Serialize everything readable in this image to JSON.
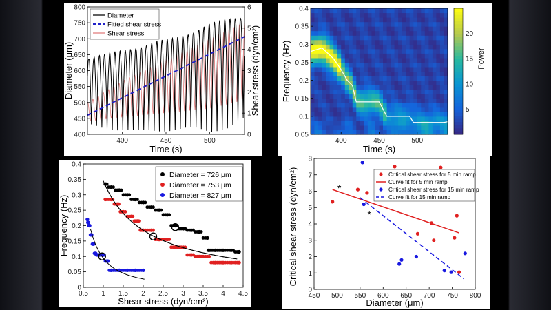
{
  "chart_data": [
    {
      "id": "top-left",
      "type": "line",
      "xlabel": "Time (s)",
      "ylabel": "Diameter (μm)",
      "y2label": "Shear stress (dyn/cm²)",
      "xlim": [
        360,
        540
      ],
      "ylim": [
        400,
        800
      ],
      "y2lim": [
        0,
        6
      ],
      "xticks": [
        400,
        450,
        500
      ],
      "yticks": [
        400,
        450,
        500,
        550,
        600,
        650,
        700,
        750,
        800
      ],
      "y2ticks": [
        0,
        1,
        2,
        3,
        4,
        5,
        6
      ],
      "legend_position": "top-left",
      "series": [
        {
          "name": "Diameter",
          "color": "#000000",
          "style": "solid",
          "axis": "left",
          "description_points": {
            "x": [
              360,
              380,
              400,
              420,
              440,
              460,
              480,
              500,
              520,
              540
            ],
            "upper": [
              640,
              650,
              660,
              675,
              690,
              700,
              720,
              745,
              760,
              770
            ],
            "lower": [
              430,
              420,
              415,
              410,
              412,
              415,
              420,
              410,
              420,
              450
            ]
          }
        },
        {
          "name": "Fitted shear stress",
          "color": "#2020c8",
          "style": "dashed",
          "axis": "right",
          "x": [
            360,
            540
          ],
          "y": [
            0.9,
            4.6
          ]
        },
        {
          "name": "Shear stress",
          "color": "#e07a7a",
          "style": "solid",
          "axis": "right",
          "description_points": {
            "x": [
              360,
              400,
              450,
              500,
              540
            ],
            "upper": [
              1.5,
              2.5,
              3.5,
              4.5,
              5.3
            ],
            "lower": [
              0.6,
              0.8,
              1.0,
              1.2,
              1.6
            ]
          }
        }
      ],
      "oscillation_periods": 30
    },
    {
      "id": "top-right",
      "type": "heatmap",
      "xlabel": "Time (s)",
      "ylabel": "Frequency (Hz)",
      "colorbar_label": "Power",
      "xlim": [
        360,
        540
      ],
      "ylim": [
        0.05,
        0.4
      ],
      "xticks": [
        400,
        450,
        500
      ],
      "yticks": [
        0.05,
        0.1,
        0.15,
        0.2,
        0.25,
        0.3,
        0.35,
        0.4
      ],
      "colorbar_ticks": [
        5,
        10,
        15,
        20
      ],
      "colorbar_range": [
        0,
        25
      ],
      "ridge": {
        "x": [
          360,
          375,
          390,
          400,
          408,
          415,
          420,
          430,
          440,
          450,
          460,
          470,
          480,
          490,
          495,
          505,
          515,
          525,
          535,
          540
        ],
        "y": [
          0.28,
          0.29,
          0.26,
          0.23,
          0.2,
          0.185,
          0.14,
          0.14,
          0.14,
          0.14,
          0.1,
          0.1,
          0.1,
          0.1,
          0.083,
          0.083,
          0.083,
          0.083,
          0.083,
          0.085
        ]
      }
    },
    {
      "id": "bottom-left",
      "type": "scatter",
      "xlabel": "Shear stress (dyn/cm²)",
      "ylabel": "Frequency (Hz)",
      "xlim": [
        0.5,
        4.5
      ],
      "ylim": [
        0,
        0.4
      ],
      "xticks": [
        0.5,
        1,
        1.5,
        2,
        2.5,
        3,
        3.5,
        4,
        4.5
      ],
      "yticks": [
        0,
        0.05,
        0.1,
        0.15,
        0.2,
        0.25,
        0.3,
        0.35,
        0.4
      ],
      "legend_position": "top-right",
      "series": [
        {
          "name": "Diameter = 726 μm",
          "color": "#000000",
          "x": [
            1.05,
            1.2,
            1.4,
            1.6,
            1.8,
            2.0,
            2.2,
            2.4,
            2.6,
            2.8,
            3.0,
            3.2,
            3.4,
            3.6,
            3.65,
            3.8,
            4.0,
            4.2,
            4.4
          ],
          "y": [
            0.335,
            0.325,
            0.315,
            0.3,
            0.285,
            0.275,
            0.26,
            0.25,
            0.235,
            0.2,
            0.19,
            0.185,
            0.18,
            0.16,
            0.12,
            0.12,
            0.12,
            0.12,
            0.115
          ],
          "fit": {
            "a": 0.345,
            "b": 0.9,
            "x0": 1.0,
            "x1": 4.35
          },
          "marker": {
            "x": 2.8,
            "y": 0.195
          }
        },
        {
          "name": "Diameter = 753 μm",
          "color": "#e02020",
          "x": [
            1.05,
            1.2,
            1.35,
            1.5,
            1.7,
            1.85,
            2.0,
            2.2,
            2.4,
            2.6,
            2.8,
            3.0,
            3.2,
            3.4,
            3.6,
            3.8,
            4.0,
            4.2,
            4.4
          ],
          "y": [
            0.285,
            0.285,
            0.27,
            0.245,
            0.23,
            0.215,
            0.185,
            0.185,
            0.155,
            0.155,
            0.13,
            0.13,
            0.105,
            0.1,
            0.1,
            0.08,
            0.08,
            0.08,
            0.08
          ],
          "fit": {
            "a": 0.345,
            "b": 0.9,
            "x0": 1.05,
            "x1": 4.35
          },
          "marker": {
            "x": 2.25,
            "y": 0.165
          }
        },
        {
          "name": "Diameter = 827 μm",
          "color": "#1818e0",
          "x": [
            0.6,
            0.62,
            0.65,
            0.7,
            0.75,
            0.8,
            0.85,
            0.9,
            1.0,
            1.1,
            1.2,
            1.4,
            1.6,
            1.8,
            2.0
          ],
          "y": [
            0.22,
            0.21,
            0.2,
            0.17,
            0.14,
            0.11,
            0.105,
            0.105,
            0.105,
            0.085,
            0.055,
            0.055,
            0.055,
            0.055,
            0.055
          ],
          "fit": {
            "a": 0.12,
            "b": 1.8,
            "x0": 0.68,
            "x1": 2.05
          },
          "marker": {
            "x": 0.97,
            "y": 0.1
          }
        }
      ]
    },
    {
      "id": "bottom-right",
      "type": "scatter",
      "xlabel": "Diameter (μm)",
      "ylabel": "Critical shear stress (dyn/cm²)",
      "xlim": [
        450,
        800
      ],
      "ylim": [
        0,
        8
      ],
      "xticks": [
        450,
        500,
        550,
        600,
        650,
        700,
        750,
        800
      ],
      "yticks": [
        0,
        1,
        2,
        3,
        4,
        5,
        6,
        7,
        8
      ],
      "legend_position": "top-right",
      "annotations": [
        {
          "text": "*",
          "x": 505,
          "y": 6.2
        },
        {
          "text": "*",
          "x": 570,
          "y": 4.6
        }
      ],
      "series": [
        {
          "name": "Critical shear stress for 5 min ramp",
          "color": "#e02020",
          "kind": "points",
          "x": [
            490,
            545,
            565,
            625,
            675,
            705,
            710,
            725,
            755,
            760,
            765
          ],
          "y": [
            5.35,
            6.1,
            5.9,
            7.5,
            3.4,
            4.05,
            3.0,
            7.45,
            3.15,
            4.5,
            1.05
          ]
        },
        {
          "name": "Curve fit for 5 min ramp",
          "color": "#e02020",
          "kind": "line",
          "x": [
            490,
            765
          ],
          "y": [
            6.1,
            3.45
          ]
        },
        {
          "name": "Critical shear stress for 15 min ramp",
          "color": "#1818e0",
          "kind": "points",
          "x": [
            555,
            558,
            635,
            640,
            672,
            733,
            748,
            778
          ],
          "y": [
            7.75,
            5.2,
            1.55,
            1.8,
            2.0,
            1.15,
            1.05,
            2.2
          ]
        },
        {
          "name": "Curve fit for 15 min ramp",
          "color": "#1818e0",
          "kind": "dashed",
          "x": [
            550,
            775
          ],
          "y": [
            5.6,
            0.65
          ]
        }
      ]
    }
  ]
}
